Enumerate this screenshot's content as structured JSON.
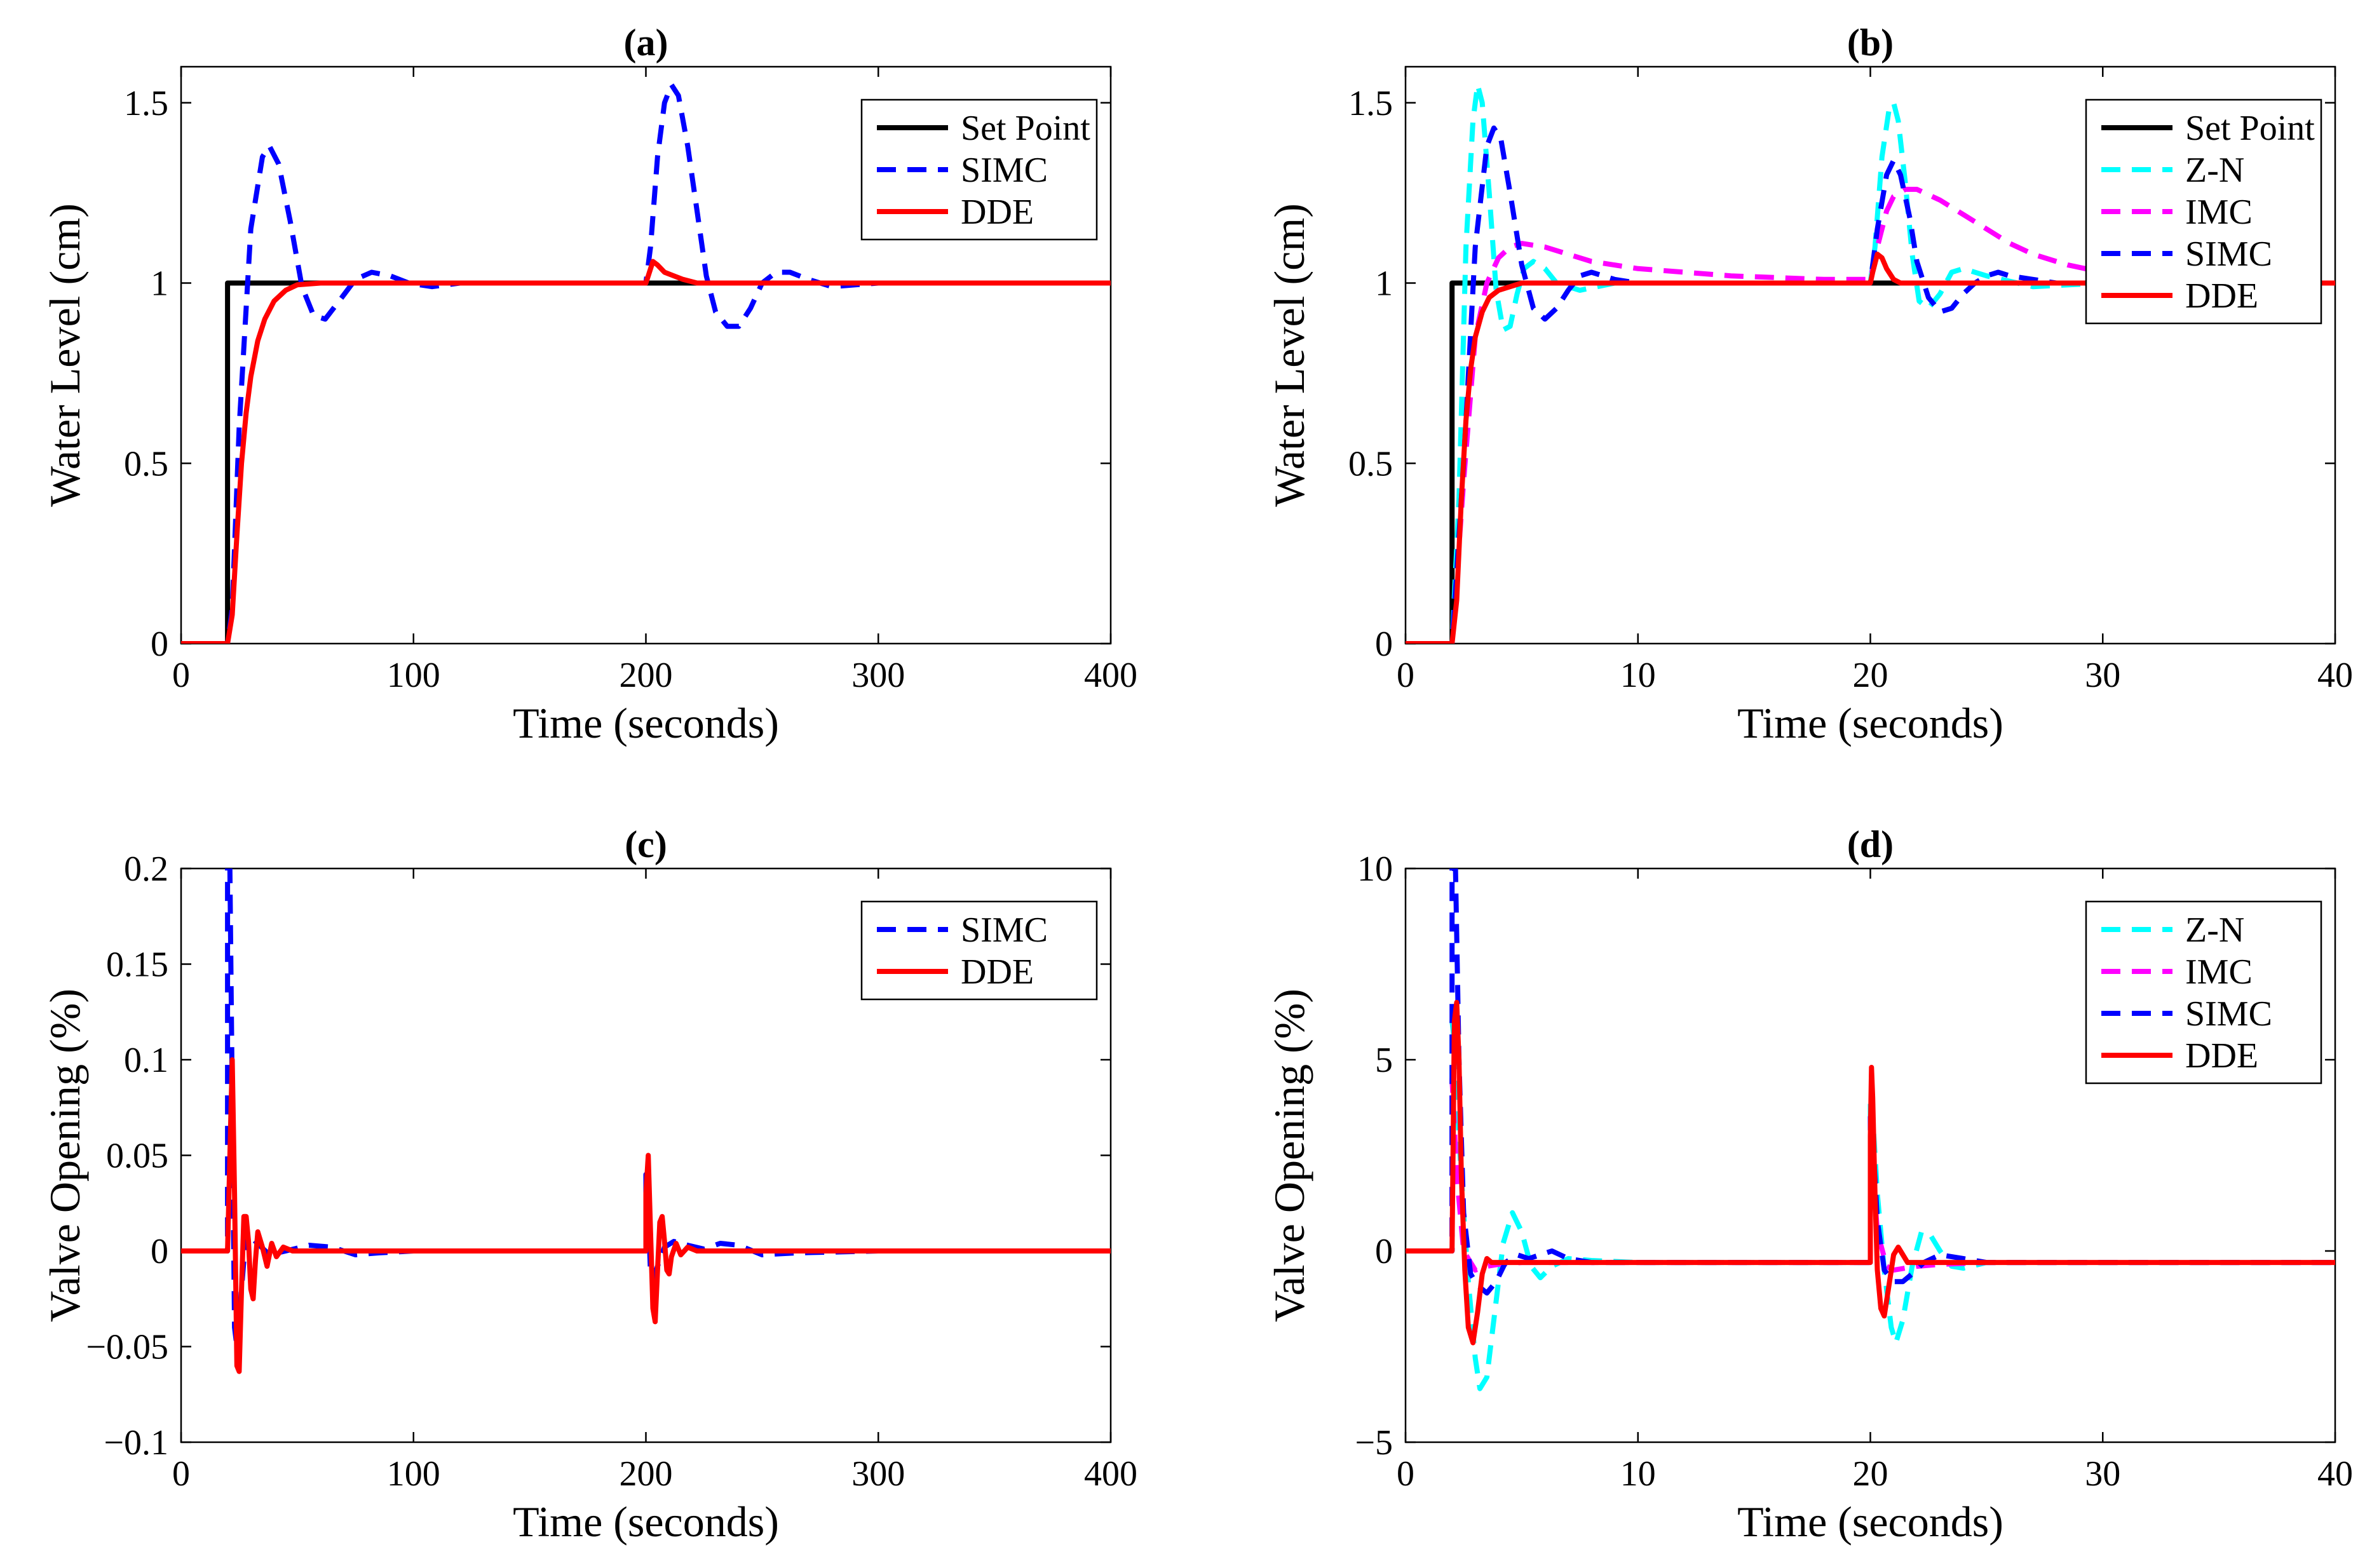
{
  "colors": {
    "set_point": "#000000",
    "zn": "#00ffff",
    "imc": "#ff00ff",
    "simc": "#0000ff",
    "dde": "#ff0000"
  },
  "chart_data": [
    {
      "id": "a",
      "type": "line",
      "title": "(a)",
      "xlabel": "Time (seconds)",
      "ylabel": "Water Level (cm)",
      "xlim": [
        0,
        400
      ],
      "ylim": [
        0,
        1.6
      ],
      "xticks": [
        0,
        100,
        200,
        300,
        400
      ],
      "xtick_labels": [
        "0",
        "100",
        "200",
        "300",
        "400"
      ],
      "yticks": [
        0,
        0.5,
        1,
        1.5
      ],
      "ytick_labels": [
        "0",
        "0.5",
        "1",
        "1.5"
      ],
      "legend_position": "top-right",
      "series": [
        {
          "name": "Set Point",
          "color_key": "set_point",
          "dashed": false,
          "x": [
            0,
            20,
            20,
            400
          ],
          "y": [
            0,
            0,
            1,
            1
          ]
        },
        {
          "name": "SIMC",
          "color_key": "simc",
          "dashed": true,
          "x": [
            0,
            20,
            22,
            25,
            30,
            35,
            38,
            42,
            47,
            52,
            57,
            62,
            68,
            75,
            82,
            90,
            98,
            108,
            120,
            140,
            160,
            180,
            200,
            202,
            205,
            208,
            211,
            214,
            218,
            222,
            226,
            230,
            235,
            240,
            245,
            250,
            256,
            262,
            270,
            280,
            300,
            340,
            400
          ],
          "y": [
            0,
            0,
            0.1,
            0.6,
            1.15,
            1.35,
            1.38,
            1.33,
            1.17,
            0.99,
            0.91,
            0.9,
            0.95,
            1.01,
            1.03,
            1.02,
            1.0,
            0.99,
            1.0,
            1.0,
            1.0,
            1.0,
            1.0,
            1.1,
            1.35,
            1.5,
            1.55,
            1.52,
            1.38,
            1.2,
            1.02,
            0.92,
            0.88,
            0.88,
            0.93,
            1.0,
            1.03,
            1.03,
            1.01,
            0.99,
            1.0,
            1.0,
            1.0
          ]
        },
        {
          "name": "DDE",
          "color_key": "dde",
          "dashed": false,
          "x": [
            0,
            20,
            22,
            24,
            26,
            28,
            30,
            33,
            36,
            40,
            45,
            50,
            60,
            80,
            120,
            200,
            201,
            203,
            205,
            208,
            212,
            216,
            222,
            240,
            300,
            400
          ],
          "y": [
            0,
            0,
            0.08,
            0.3,
            0.5,
            0.64,
            0.74,
            0.84,
            0.9,
            0.95,
            0.98,
            0.995,
            1.0,
            1.0,
            1.0,
            1.0,
            1.02,
            1.06,
            1.05,
            1.03,
            1.02,
            1.01,
            1.0,
            1.0,
            1.0,
            1.0
          ]
        }
      ]
    },
    {
      "id": "b",
      "type": "line",
      "title": "(b)",
      "xlabel": "Time (seconds)",
      "ylabel": "Water Level (cm)",
      "xlim": [
        0,
        40
      ],
      "ylim": [
        0,
        1.6
      ],
      "xticks": [
        0,
        10,
        20,
        30,
        40
      ],
      "xtick_labels": [
        "0",
        "10",
        "20",
        "30",
        "40"
      ],
      "yticks": [
        0,
        0.5,
        1,
        1.5
      ],
      "ytick_labels": [
        "0",
        "0.5",
        "1",
        "1.5"
      ],
      "legend_position": "top-right",
      "series": [
        {
          "name": "Set Point",
          "color_key": "set_point",
          "dashed": false,
          "x": [
            0,
            2,
            2,
            40
          ],
          "y": [
            0,
            0,
            1,
            1
          ]
        },
        {
          "name": "Z-N",
          "color_key": "zn",
          "dashed": true,
          "x": [
            0,
            2,
            2.3,
            2.6,
            2.9,
            3.1,
            3.3,
            3.6,
            3.9,
            4.2,
            4.5,
            4.8,
            5.1,
            5.5,
            6,
            6.5,
            7.5,
            9,
            12,
            20,
            20.2,
            20.5,
            20.8,
            21,
            21.2,
            21.5,
            21.8,
            22.1,
            22.5,
            23,
            23.5,
            24,
            25,
            27,
            30,
            40
          ],
          "y": [
            0,
            0,
            0.4,
            1.1,
            1.45,
            1.55,
            1.5,
            1.25,
            0.98,
            0.87,
            0.88,
            0.97,
            1.04,
            1.06,
            1.04,
            1.0,
            0.98,
            1.0,
            1.0,
            1.0,
            1.1,
            1.35,
            1.48,
            1.5,
            1.45,
            1.28,
            1.08,
            0.95,
            0.93,
            0.97,
            1.03,
            1.04,
            1.02,
            0.99,
            1.0,
            1.0
          ]
        },
        {
          "name": "IMC",
          "color_key": "imc",
          "dashed": true,
          "x": [
            0,
            2,
            2.5,
            3,
            3.5,
            4,
            4.5,
            5,
            6,
            8,
            10,
            12,
            14,
            16,
            18,
            20,
            20.3,
            20.7,
            21,
            21.5,
            22,
            23,
            24,
            25,
            26,
            27,
            28,
            28.5,
            30,
            32,
            35,
            40
          ],
          "y": [
            0,
            0,
            0.45,
            0.85,
            1.0,
            1.07,
            1.1,
            1.11,
            1.1,
            1.06,
            1.04,
            1.03,
            1.02,
            1.015,
            1.01,
            1.01,
            1.1,
            1.2,
            1.24,
            1.26,
            1.26,
            1.23,
            1.19,
            1.15,
            1.11,
            1.08,
            1.06,
            1.05,
            1.03,
            1.01,
            1.0,
            1.0
          ]
        },
        {
          "name": "SIMC",
          "color_key": "simc",
          "dashed": true,
          "x": [
            0,
            2,
            2.5,
            3,
            3.5,
            3.8,
            4.1,
            4.5,
            5,
            5.5,
            6,
            6.5,
            7,
            7.5,
            8,
            9,
            10,
            12,
            15,
            20,
            20.3,
            20.7,
            21,
            21.3,
            21.7,
            22,
            22.5,
            23,
            23.5,
            24,
            24.5,
            25,
            25.5,
            26,
            27,
            28,
            30,
            40
          ],
          "y": [
            0,
            0,
            0.5,
            1.1,
            1.38,
            1.43,
            1.4,
            1.25,
            1.05,
            0.93,
            0.9,
            0.93,
            0.98,
            1.02,
            1.03,
            1.01,
            1.0,
            1.0,
            1.0,
            1.0,
            1.15,
            1.3,
            1.34,
            1.3,
            1.18,
            1.06,
            0.96,
            0.92,
            0.93,
            0.97,
            1.0,
            1.02,
            1.03,
            1.02,
            1.01,
            1.0,
            1.0,
            1.0
          ]
        },
        {
          "name": "DDE",
          "color_key": "dde",
          "dashed": false,
          "x": [
            0,
            2,
            2.2,
            2.4,
            2.6,
            2.8,
            3,
            3.3,
            3.6,
            4,
            4.5,
            5,
            6,
            8,
            12,
            20,
            20.1,
            20.3,
            20.5,
            20.7,
            21,
            21.3,
            22,
            25,
            30,
            40
          ],
          "y": [
            0,
            0,
            0.12,
            0.4,
            0.62,
            0.76,
            0.85,
            0.92,
            0.96,
            0.98,
            0.99,
            1.0,
            1.0,
            1.0,
            1.0,
            1.0,
            1.03,
            1.08,
            1.07,
            1.04,
            1.01,
            1.0,
            1.0,
            1.0,
            1.0,
            1.0
          ]
        }
      ]
    },
    {
      "id": "c",
      "type": "line",
      "title": "(c)",
      "xlabel": "Time (seconds)",
      "ylabel": "Valve Opening (%)",
      "xlim": [
        0,
        400
      ],
      "ylim": [
        -0.1,
        0.2
      ],
      "xticks": [
        0,
        100,
        200,
        300,
        400
      ],
      "xtick_labels": [
        "0",
        "100",
        "200",
        "300",
        "400"
      ],
      "yticks": [
        -0.1,
        -0.05,
        0,
        0.05,
        0.1,
        0.15,
        0.2
      ],
      "ytick_labels": [
        "−0.1",
        "−0.05",
        "0",
        "0.05",
        "0.1",
        "0.15",
        "0.2"
      ],
      "legend_position": "top-right",
      "series": [
        {
          "name": "SIMC",
          "color_key": "simc",
          "dashed": true,
          "x": [
            0,
            20,
            20,
            21,
            22,
            23,
            24,
            26,
            28,
            32,
            38,
            45,
            55,
            65,
            75,
            85,
            100,
            150,
            200,
            200,
            201,
            202,
            203,
            205,
            208,
            212,
            218,
            225,
            232,
            240,
            250,
            265,
            300,
            400
          ],
          "y": [
            0,
            0,
            0.2,
            0.2,
            0.08,
            -0.04,
            -0.05,
            -0.02,
            0.01,
            0.005,
            -0.002,
            0,
            0.003,
            0.002,
            -0.002,
            -0.001,
            0,
            0,
            0,
            0.04,
            0.02,
            -0.012,
            -0.015,
            -0.008,
            0.002,
            0.005,
            0.003,
            0.001,
            0.004,
            0.003,
            -0.002,
            -0.001,
            0,
            0
          ]
        },
        {
          "name": "DDE",
          "color_key": "dde",
          "dashed": false,
          "x": [
            0,
            20,
            21,
            22,
            23,
            24,
            25,
            26,
            27,
            28,
            29,
            30,
            31,
            32,
            33,
            35,
            37,
            39,
            41,
            44,
            48,
            55,
            70,
            100,
            200,
            200,
            201,
            202,
            203,
            204,
            205,
            206,
            207,
            208,
            209,
            210,
            211,
            213,
            215,
            218,
            222,
            230,
            250,
            400
          ],
          "y": [
            0,
            0,
            0.05,
            0.1,
            0.03,
            -0.06,
            -0.063,
            -0.02,
            0.018,
            0.018,
            0.005,
            -0.02,
            -0.025,
            -0.005,
            0.01,
            0.002,
            -0.008,
            0.004,
            -0.003,
            0.002,
            0,
            0,
            0,
            0,
            0,
            0.03,
            0.05,
            0.01,
            -0.03,
            -0.037,
            -0.01,
            0.015,
            0.018,
            0.005,
            -0.01,
            -0.012,
            -0.003,
            0.004,
            -0.002,
            0.002,
            0,
            0,
            0,
            0
          ]
        }
      ]
    },
    {
      "id": "d",
      "type": "line",
      "title": "(d)",
      "xlabel": "Time (seconds)",
      "ylabel": "Valve Opening (%)",
      "xlim": [
        0,
        40
      ],
      "ylim": [
        -5,
        10
      ],
      "xticks": [
        0,
        10,
        20,
        30,
        40
      ],
      "xtick_labels": [
        "0",
        "10",
        "20",
        "30",
        "40"
      ],
      "yticks": [
        -5,
        0,
        5,
        10
      ],
      "ytick_labels": [
        "−5",
        "0",
        "5",
        "10"
      ],
      "legend_position": "top-right",
      "series": [
        {
          "name": "Z-N",
          "color_key": "zn",
          "dashed": true,
          "x": [
            0,
            2,
            2,
            2.1,
            2.3,
            2.5,
            2.7,
            3,
            3.2,
            3.5,
            3.8,
            4.2,
            4.6,
            5,
            5.4,
            5.8,
            6.3,
            7,
            8,
            10,
            15,
            20,
            20,
            20.1,
            20.3,
            20.6,
            20.9,
            21.1,
            21.4,
            21.8,
            22.2,
            22.6,
            23,
            23.5,
            24,
            25,
            26,
            28,
            40
          ],
          "y": [
            0,
            0,
            6,
            5.5,
            3,
            1,
            -0.8,
            -2.8,
            -3.6,
            -3.3,
            -1.8,
            0.2,
            1.0,
            0.5,
            -0.4,
            -0.7,
            -0.4,
            -0.2,
            -0.25,
            -0.3,
            -0.3,
            -0.3,
            4,
            3.5,
            1.5,
            -0.5,
            -2.0,
            -2.4,
            -1.8,
            -0.4,
            0.5,
            0.4,
            0,
            -0.4,
            -0.45,
            -0.3,
            -0.3,
            -0.3,
            -0.3
          ]
        },
        {
          "name": "IMC",
          "color_key": "imc",
          "dashed": true,
          "x": [
            0,
            2,
            2,
            2.2,
            2.5,
            3,
            3.5,
            4,
            5,
            6,
            8,
            10,
            15,
            20,
            20,
            20.3,
            20.7,
            21,
            21.5,
            22,
            23,
            25,
            30,
            40
          ],
          "y": [
            0,
            0,
            4.5,
            2,
            0,
            -0.5,
            -0.4,
            -0.35,
            -0.3,
            -0.3,
            -0.3,
            -0.3,
            -0.3,
            -0.3,
            3,
            0.5,
            -0.4,
            -0.5,
            -0.45,
            -0.4,
            -0.35,
            -0.3,
            -0.3,
            -0.3
          ]
        },
        {
          "name": "SIMC",
          "color_key": "simc",
          "dashed": true,
          "x": [
            0,
            2,
            2,
            2.15,
            2.3,
            2.5,
            2.8,
            3.1,
            3.5,
            3.9,
            4.3,
            4.8,
            5.3,
            5.8,
            6.3,
            7,
            8,
            10,
            15,
            20,
            20,
            20.1,
            20.3,
            20.6,
            21,
            21.4,
            21.8,
            22.3,
            23,
            24,
            25,
            27,
            40
          ],
          "y": [
            0,
            0,
            10,
            10,
            5,
            1,
            -0.6,
            -0.9,
            -1.1,
            -0.8,
            -0.3,
            -0.1,
            -0.2,
            -0.1,
            0.0,
            -0.2,
            -0.3,
            -0.3,
            -0.3,
            -0.3,
            3.5,
            3,
            0.8,
            -0.5,
            -0.8,
            -0.8,
            -0.6,
            -0.3,
            -0.1,
            -0.2,
            -0.3,
            -0.3,
            -0.3
          ]
        },
        {
          "name": "DDE",
          "color_key": "dde",
          "dashed": false,
          "x": [
            0,
            2,
            2.05,
            2.1,
            2.2,
            2.3,
            2.4,
            2.55,
            2.7,
            2.9,
            3.1,
            3.3,
            3.5,
            3.7,
            4,
            5,
            10,
            20,
            20,
            20.05,
            20.1,
            20.2,
            20.3,
            20.45,
            20.6,
            20.8,
            21,
            21.2,
            21.4,
            21.6,
            21.9,
            22.3,
            23,
            25,
            40
          ],
          "y": [
            0,
            0,
            3,
            6,
            6.5,
            5,
            2,
            -0.5,
            -2.0,
            -2.4,
            -1.6,
            -0.6,
            -0.2,
            -0.3,
            -0.3,
            -0.3,
            -0.3,
            -0.3,
            3,
            4.8,
            4,
            1.5,
            -0.5,
            -1.5,
            -1.7,
            -0.9,
            -0.1,
            0.1,
            -0.1,
            -0.3,
            -0.3,
            -0.3,
            -0.3,
            -0.3,
            -0.3
          ]
        }
      ]
    }
  ]
}
